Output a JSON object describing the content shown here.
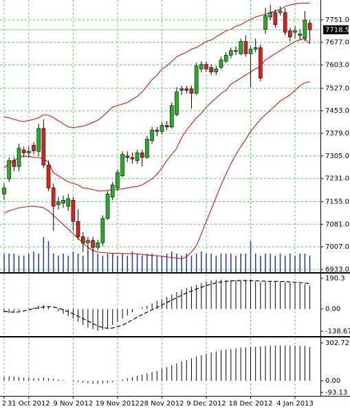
{
  "chart_data": [
    {
      "type": "candlestick",
      "categories": [
        "2",
        null,
        null,
        null,
        null,
        "31 Oct 2012",
        null,
        null,
        null,
        null,
        null,
        null,
        null,
        null,
        "9 Nov 2012",
        null,
        null,
        null,
        null,
        null,
        null,
        null,
        null,
        "19 Nov 2012",
        null,
        null,
        null,
        null,
        null,
        null,
        null,
        null,
        "28 Nov 2012",
        null,
        null,
        null,
        null,
        null,
        null,
        null,
        null,
        "9 Dec 2012",
        null,
        null,
        null,
        null,
        null,
        null,
        null,
        null,
        "18 Dec 2012",
        null,
        null,
        null,
        null,
        null,
        null,
        null,
        null,
        "4 Jan 2013",
        null,
        null,
        null
      ],
      "open": [
        7180,
        7230,
        7290,
        7270,
        7325,
        7315,
        7340,
        7320,
        7395,
        7275,
        7200,
        7145,
        7150,
        7140,
        7160,
        7090,
        7040,
        7020,
        7028,
        7005,
        7020,
        7100,
        7170,
        7200,
        7240,
        7305,
        7300,
        7290,
        7315,
        7300,
        7355,
        7390,
        7385,
        7405,
        7400,
        7440,
        7520,
        7525,
        7525,
        7510,
        7590,
        7605,
        7595,
        7580,
        7595,
        7615,
        7635,
        7650,
        7640,
        7680,
        7640,
        7655,
        7660,
        7720,
        7760,
        7775,
        7775,
        7775,
        7715,
        7710,
        7700,
        7690,
        7740
      ],
      "high": [
        7215,
        7300,
        7300,
        7345,
        7335,
        7335,
        7350,
        7410,
        7425,
        7290,
        7215,
        7170,
        7175,
        7180,
        7170,
        7130,
        7055,
        7040,
        7040,
        7030,
        7110,
        7190,
        7220,
        7260,
        7320,
        7320,
        7315,
        7325,
        7325,
        7370,
        7400,
        7400,
        7415,
        7420,
        7480,
        7530,
        7535,
        7535,
        7535,
        7610,
        7615,
        7615,
        7605,
        7600,
        7630,
        7645,
        7660,
        7665,
        7690,
        7700,
        7665,
        7690,
        7670,
        7790,
        7800,
        7785,
        7795,
        7790,
        7725,
        7730,
        7720,
        7780,
        7750
      ],
      "low": [
        7160,
        7220,
        7255,
        7255,
        7300,
        7300,
        7310,
        7305,
        7265,
        7190,
        7060,
        7130,
        7135,
        7125,
        7060,
        7030,
        6990,
        6985,
        6990,
        6995,
        7010,
        7095,
        7160,
        7190,
        7235,
        7285,
        7280,
        7280,
        7270,
        7295,
        7345,
        7370,
        7375,
        7390,
        7395,
        7435,
        7505,
        7510,
        7460,
        7505,
        7580,
        7580,
        7570,
        7570,
        7590,
        7610,
        7625,
        7635,
        7635,
        7630,
        7530,
        7645,
        7550,
        7705,
        7750,
        7725,
        7765,
        7700,
        7680,
        7690,
        7685,
        7680,
        7675
      ],
      "close": [
        7200,
        7290,
        7270,
        7330,
        7315,
        7320,
        7322,
        7395,
        7275,
        7200,
        7140,
        7155,
        7160,
        7165,
        7090,
        7040,
        7020,
        7028,
        7005,
        7020,
        7100,
        7180,
        7210,
        7250,
        7310,
        7300,
        7295,
        7315,
        7300,
        7360,
        7390,
        7385,
        7405,
        7400,
        7470,
        7515,
        7525,
        7520,
        7510,
        7600,
        7605,
        7590,
        7580,
        7590,
        7620,
        7635,
        7650,
        7648,
        7680,
        7640,
        7655,
        7660,
        7560,
        7765,
        7775,
        7735,
        7780,
        7710,
        7695,
        7715,
        7705,
        7750,
        7718.5
      ],
      "up_color": "#22b322",
      "down_color": "#e02020",
      "bands": [
        {
          "color": "#cc0000",
          "values": [
            7433,
            7430,
            7425,
            7420,
            7418,
            7421,
            7425,
            7430,
            7440,
            7438,
            7430,
            7420,
            7410,
            7400,
            7398,
            7400,
            7402,
            7408,
            7415,
            7422,
            7435,
            7450,
            7465,
            7470,
            7475,
            7480,
            7490,
            7500,
            7515,
            7535,
            7555,
            7570,
            7590,
            7600,
            7615,
            7630,
            7638,
            7645,
            7655,
            7660,
            7670,
            7680,
            7685,
            7695,
            7705,
            7715,
            7720,
            7730,
            7735,
            7745,
            7752,
            7760,
            7765,
            7770,
            7775,
            7780,
            7785,
            7795,
            7800,
            7803,
            7805,
            7806,
            7806
          ]
        },
        {
          "color": "#cc0000",
          "values": [
            7265,
            7280,
            7290,
            7300,
            7305,
            7303,
            7300,
            7300,
            7295,
            7285,
            7250,
            7240,
            7230,
            7220,
            7215,
            7210,
            7200,
            7198,
            7195,
            7190,
            7190,
            7192,
            7194,
            7195,
            7197,
            7200,
            7203,
            7205,
            7210,
            7220,
            7230,
            7245,
            7265,
            7290,
            7310,
            7330,
            7365,
            7390,
            7410,
            7430,
            7445,
            7465,
            7480,
            7495,
            7510,
            7520,
            7540,
            7550,
            7560,
            7570,
            7580,
            7590,
            7600,
            7620,
            7630,
            7640,
            7650,
            7660,
            7670,
            7680,
            7685,
            7690,
            7672
          ]
        },
        {
          "color": "#cc0000",
          "values": [
            7117,
            7125,
            7130,
            7135,
            7137,
            7140,
            7140,
            7138,
            7135,
            7125,
            7110,
            7095,
            7080,
            7065,
            7050,
            7035,
            7020,
            7005,
            6995,
            6990,
            6988,
            6987,
            6986,
            6986,
            6985,
            6985,
            6985,
            6984,
            6982,
            6980,
            6979,
            6978,
            6976,
            6974,
            6972,
            6970,
            6968,
            6975,
            6990,
            7010,
            7050,
            7090,
            7130,
            7170,
            7210,
            7245,
            7280,
            7310,
            7335,
            7360,
            7385,
            7405,
            7425,
            7440,
            7455,
            7470,
            7485,
            7495,
            7505,
            7520,
            7535,
            7545,
            7548
          ]
        }
      ],
      "volume": [
        45,
        45,
        45,
        40,
        40,
        45,
        50,
        45,
        85,
        75,
        45,
        40,
        45,
        40,
        50,
        45,
        40,
        50,
        55,
        45,
        40,
        45,
        45,
        40,
        45,
        40,
        50,
        45,
        40,
        45,
        45,
        40,
        40,
        45,
        50,
        45,
        40,
        45,
        40,
        45,
        50,
        45,
        45,
        40,
        45,
        45,
        45,
        40,
        45,
        45,
        75,
        45,
        40,
        45,
        45,
        40,
        45,
        40,
        45,
        40,
        45,
        45,
        40
      ],
      "volume_color": "#1f3a9a",
      "ylim": [
        6924,
        7816
      ],
      "yticks": [
        {
          "value": 7751,
          "label": "7751.0"
        },
        {
          "value": 7677,
          "label": "7677.0"
        },
        {
          "value": 7603,
          "label": "7603.0"
        },
        {
          "value": 7527,
          "label": "7527.0"
        },
        {
          "value": 7453,
          "label": "7453.0"
        },
        {
          "value": 7379,
          "label": "7379.0"
        },
        {
          "value": 7305,
          "label": "7305.0"
        },
        {
          "value": 7231,
          "label": "7231.0"
        },
        {
          "value": 7155,
          "label": "7155.0"
        },
        {
          "value": 7081,
          "label": "7081.0"
        },
        {
          "value": 7007,
          "label": "7007.0"
        },
        {
          "value": 6933,
          "label": "6933.0"
        }
      ],
      "last_price": 7718.5,
      "grid": true
    },
    {
      "type": "bar",
      "values": [
        -20,
        -25,
        -20,
        -10,
        0,
        5,
        10,
        20,
        25,
        15,
        0,
        -15,
        -30,
        -45,
        -60,
        -80,
        -100,
        -115,
        -125,
        -135,
        -130,
        -120,
        -100,
        -80,
        -60,
        -40,
        -20,
        0,
        10,
        20,
        35,
        50,
        60,
        75,
        90,
        105,
        120,
        130,
        140,
        150,
        160,
        170,
        178,
        180,
        182,
        180,
        180,
        178,
        175,
        178,
        175,
        170,
        168,
        170,
        172,
        170,
        168,
        165,
        162,
        160,
        158,
        155,
        145
      ],
      "signal": [
        -15,
        -18,
        -20,
        -18,
        -12,
        -5,
        2,
        8,
        12,
        15,
        12,
        5,
        -5,
        -18,
        -30,
        -45,
        -60,
        -75,
        -90,
        -105,
        -115,
        -120,
        -118,
        -110,
        -100,
        -85,
        -68,
        -50,
        -35,
        -20,
        -5,
        10,
        25,
        40,
        55,
        70,
        85,
        100,
        112,
        125,
        135,
        145,
        155,
        162,
        168,
        172,
        175,
        176,
        177,
        177,
        176,
        175,
        174,
        173,
        172,
        172,
        171,
        170,
        168,
        166,
        164,
        162,
        158
      ],
      "color": "#000000",
      "ylim": [
        -164,
        216
      ],
      "yticks": [
        190.3,
        {
          "value": 0,
          "label": "0.00"
        },
        -138.67
      ]
    },
    {
      "type": "bar",
      "values": [
        30,
        35,
        35,
        30,
        25,
        25,
        20,
        20,
        25,
        20,
        15,
        10,
        5,
        0,
        -5,
        -10,
        -15,
        -20,
        -25,
        -25,
        -22,
        -18,
        -10,
        0,
        10,
        20,
        30,
        40,
        50,
        60,
        70,
        80,
        95,
        110,
        125,
        140,
        155,
        165,
        180,
        195,
        205,
        215,
        225,
        235,
        245,
        250,
        255,
        260,
        265,
        268,
        270,
        272,
        275,
        278,
        280,
        282,
        283,
        283,
        282,
        280,
        280,
        278,
        270
      ],
      "color": "#000000",
      "ylim": [
        -115,
        341
      ],
      "yticks": [
        302.72,
        {
          "value": 0,
          "label": "0.00"
        },
        -93.13
      ]
    }
  ]
}
